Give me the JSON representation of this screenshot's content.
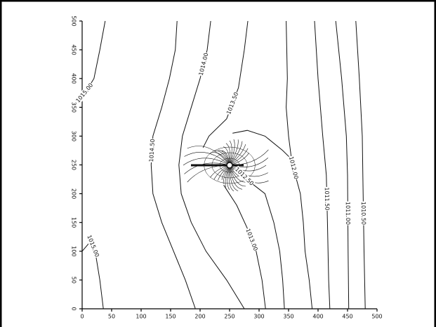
{
  "chart_data": {
    "type": "contour",
    "xlim": [
      0,
      500
    ],
    "ylim": [
      0,
      500
    ],
    "xticks": [
      0,
      50,
      100,
      150,
      200,
      250,
      300,
      350,
      400,
      450,
      500
    ],
    "yticks": [
      0,
      50,
      100,
      150,
      200,
      250,
      300,
      350,
      400,
      450,
      500
    ],
    "color": "#111111",
    "contours": [
      {
        "label": "1015.00",
        "x": [
          39,
          30,
          20,
          8,
          0
        ],
        "y": [
          500,
          450,
          400,
          380,
          370
        ]
      },
      {
        "label": "1015.00",
        "x": [
          0,
          15,
          22,
          30,
          36
        ],
        "y": [
          100,
          118,
          100,
          50,
          0
        ]
      },
      {
        "label": "1014.50",
        "x": [
          161,
          158,
          148,
          135,
          120,
          117,
          120,
          135,
          155,
          175,
          192
        ],
        "y": [
          500,
          450,
          400,
          350,
          300,
          250,
          200,
          150,
          100,
          50,
          0
        ]
      },
      {
        "label": "1014.00",
        "x": [
          218,
          212,
          200,
          185,
          170,
          164,
          168,
          185,
          210,
          245,
          275
        ],
        "y": [
          500,
          450,
          400,
          350,
          300,
          250,
          200,
          150,
          100,
          50,
          0
        ]
      },
      {
        "label": "1013.50",
        "x": [
          281,
          275,
          265,
          245,
          215,
          205
        ],
        "y": [
          500,
          450,
          384,
          330,
          300,
          280
        ]
      },
      {
        "label": "1013.00",
        "x": [
          240,
          262,
          280,
          295,
          305,
          311
        ],
        "y": [
          215,
          180,
          140,
          100,
          50,
          0
        ]
      },
      {
        "label": "1012.50",
        "x": [
          265,
          285,
          310,
          325,
          335,
          340,
          343
        ],
        "y": [
          240,
          220,
          200,
          150,
          100,
          50,
          0
        ]
      },
      {
        "x": [
          255,
          280,
          310,
          340,
          355
        ],
        "y": [
          305,
          310,
          300,
          275,
          260
        ]
      },
      {
        "label": "1012.00",
        "x": [
          346,
          348,
          346,
          350,
          355,
          362,
          370,
          375,
          378,
          385,
          390
        ],
        "y": [
          500,
          400,
          350,
          300,
          260,
          230,
          200,
          150,
          100,
          50,
          0
        ]
      },
      {
        "label": "1011.50",
        "x": [
          394,
          400,
          408,
          414,
          416,
          418,
          420
        ],
        "y": [
          500,
          400,
          300,
          232,
          150,
          50,
          0
        ]
      },
      {
        "label": "1011.00",
        "x": [
          430,
          440,
          448,
          450,
          451,
          452
        ],
        "y": [
          500,
          400,
          300,
          232,
          100,
          0
        ]
      },
      {
        "label": "1010.50",
        "x": [
          464,
          470,
          475,
          476,
          478,
          480
        ],
        "y": [
          500,
          400,
          300,
          232,
          100,
          0
        ]
      }
    ]
  }
}
